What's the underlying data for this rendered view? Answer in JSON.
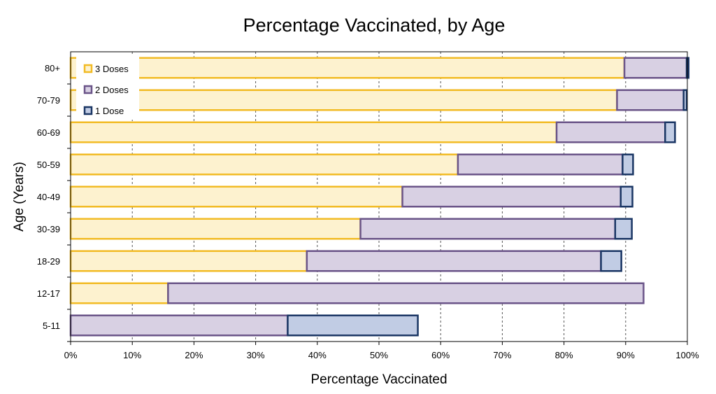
{
  "chart_data": {
    "type": "bar",
    "orientation": "horizontal",
    "stacked": true,
    "title": "Percentage Vaccinated, by Age",
    "xlabel": "Percentage Vaccinated",
    "ylabel": "Age (Years)",
    "xlim": [
      0,
      100
    ],
    "x_ticks": [
      "0%",
      "10%",
      "20%",
      "30%",
      "40%",
      "50%",
      "60%",
      "70%",
      "80%",
      "90%",
      "100%"
    ],
    "grid": "vertical dashed",
    "legend_position": "top-left",
    "categories": [
      "5-11",
      "12-17",
      "18-29",
      "30-39",
      "40-49",
      "50-59",
      "60-69",
      "70-79",
      "80+"
    ],
    "series": [
      {
        "name": "3 Doses",
        "values": [
          0,
          15.8,
          38.3,
          47.0,
          53.8,
          62.8,
          78.8,
          88.6,
          89.8
        ],
        "fill": "#fdf2cf",
        "stroke": "#f2bb25"
      },
      {
        "name": "2 Doses",
        "values": [
          35.2,
          77.1,
          47.7,
          41.3,
          35.4,
          26.7,
          17.6,
          10.8,
          10.1
        ],
        "fill": "#d8d0e3",
        "stroke": "#6a5488"
      },
      {
        "name": "1 Dose",
        "values": [
          21.1,
          0,
          3.3,
          2.7,
          1.9,
          1.7,
          1.6,
          0.5,
          0.3
        ],
        "fill": "#c1cce4",
        "stroke": "#1a3664"
      }
    ]
  }
}
